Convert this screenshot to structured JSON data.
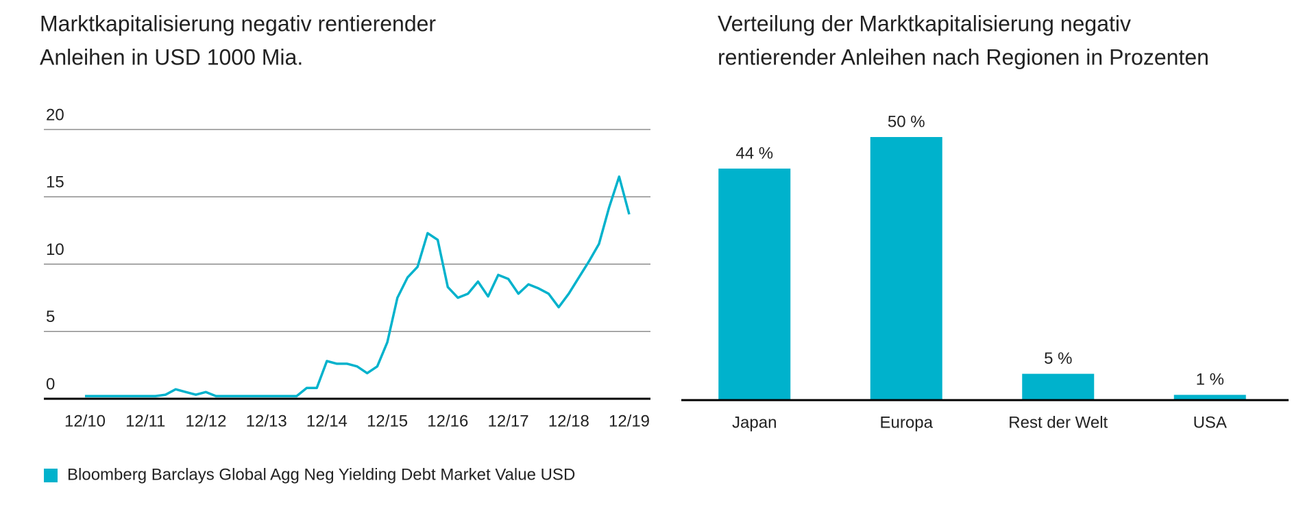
{
  "chart_data": [
    {
      "type": "line",
      "title": [
        "Marktkapitalisierung negativ rentierender",
        "Anleihen in USD 1000 Mia."
      ],
      "categories": [
        "12/10",
        null,
        null,
        null,
        null,
        null,
        "12/11",
        null,
        null,
        null,
        null,
        null,
        "12/12",
        null,
        null,
        null,
        null,
        null,
        "12/13",
        null,
        null,
        null,
        null,
        null,
        "12/14",
        null,
        null,
        null,
        null,
        null,
        "12/15",
        null,
        null,
        null,
        null,
        null,
        "12/16",
        null,
        null,
        null,
        null,
        null,
        "12/17",
        null,
        null,
        null,
        null,
        null,
        "12/18",
        null,
        null,
        null,
        null,
        null,
        "12/19"
      ],
      "series": [
        {
          "name": "Bloomberg Barclays Global Agg Neg Yielding Debt Market Value USD",
          "color": "#00b2cc",
          "values": [
            0.2,
            0.2,
            0.2,
            0.2,
            0.2,
            0.2,
            0.2,
            0.2,
            0.3,
            0.7,
            0.5,
            0.3,
            0.5,
            0.2,
            0.2,
            0.2,
            0.2,
            0.2,
            0.2,
            0.2,
            0.2,
            0.2,
            0.8,
            0.8,
            2.8,
            2.6,
            2.6,
            2.4,
            1.9,
            2.4,
            4.2,
            7.5,
            9.0,
            9.8,
            12.3,
            11.8,
            8.3,
            7.5,
            7.8,
            8.7,
            7.6,
            9.2,
            8.9,
            7.8,
            8.5,
            8.2,
            7.8,
            6.8,
            7.8,
            9.0,
            10.2,
            11.5,
            14.2,
            16.5,
            13.7
          ]
        }
      ],
      "ylim": [
        0,
        20
      ],
      "yticks": [
        0,
        5,
        10,
        15,
        20
      ],
      "grid": true
    },
    {
      "type": "bar",
      "title": [
        "Verteilung der Marktkapitalisierung negativ",
        "rentierender Anleihen nach Regionen in Prozenten"
      ],
      "categories": [
        "Japan",
        "Europa",
        "Rest der Welt",
        "USA"
      ],
      "values": [
        44,
        50,
        5,
        1
      ],
      "value_labels": [
        "44 %",
        "50 %",
        "5 %",
        "1 %"
      ],
      "color": "#00b2cc"
    }
  ]
}
